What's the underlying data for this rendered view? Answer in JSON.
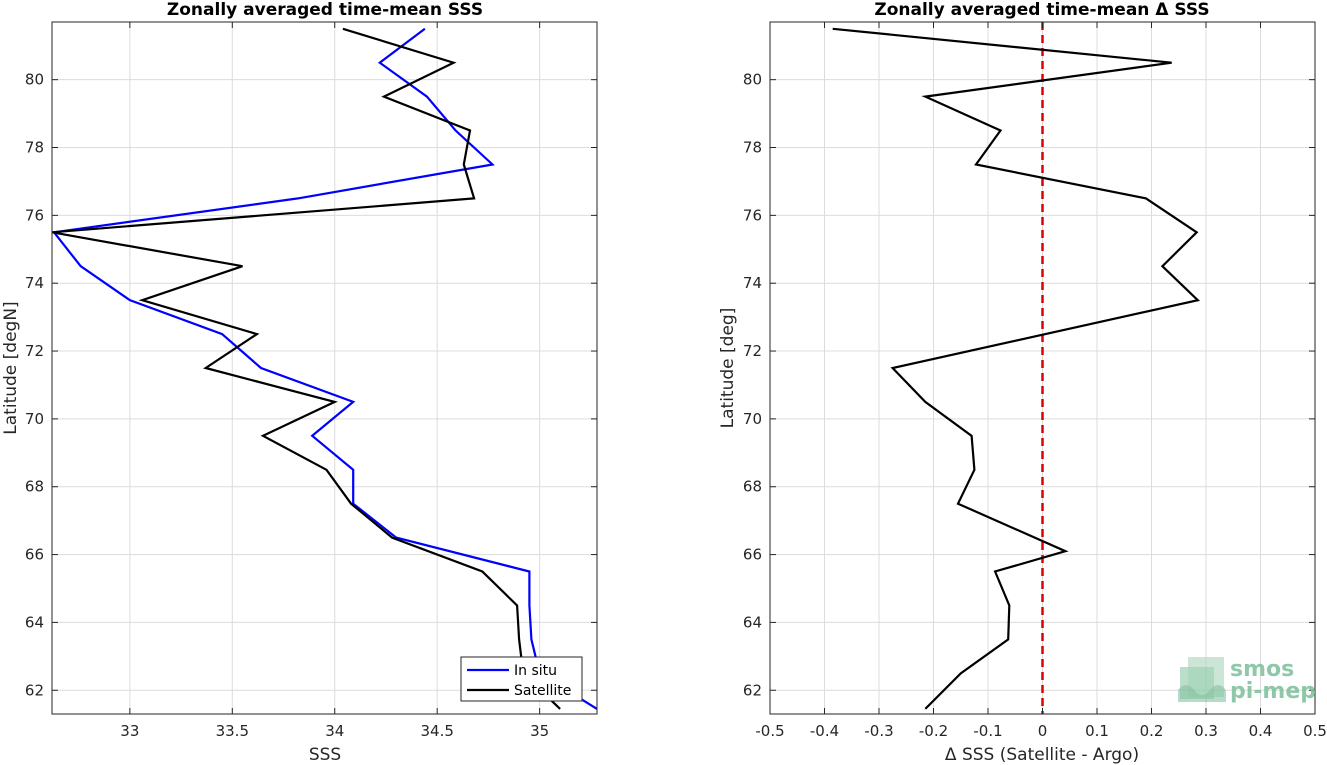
{
  "chart_data": [
    {
      "type": "line",
      "title": "Zonally averaged time-mean SSS",
      "xlabel": "SSS",
      "ylabel": "Latitude [degN]",
      "xlim": [
        32.62,
        35.28
      ],
      "ylim": [
        61.3,
        81.7
      ],
      "grid": true,
      "xticks": [
        33,
        33.5,
        34,
        34.5,
        35
      ],
      "xtick_labels": [
        "33",
        "33.5",
        "34",
        "34.5",
        "35"
      ],
      "yticks": [
        62,
        64,
        66,
        68,
        70,
        72,
        74,
        76,
        78,
        80
      ],
      "ytick_labels": [
        "62",
        "64",
        "66",
        "68",
        "70",
        "72",
        "74",
        "76",
        "78",
        "80"
      ],
      "legend_position": "bottom-right",
      "series": [
        {
          "name": "In situ",
          "color": "#0000ff",
          "points": [
            [
              35.28,
              61.45
            ],
            [
              35.0,
              62.5
            ],
            [
              34.96,
              63.5
            ],
            [
              34.95,
              64.5
            ],
            [
              34.95,
              65.5
            ],
            [
              34.3,
              66.5
            ],
            [
              34.09,
              67.5
            ],
            [
              34.09,
              68.5
            ],
            [
              33.89,
              69.5
            ],
            [
              34.09,
              70.5
            ],
            [
              33.64,
              71.5
            ],
            [
              33.45,
              72.5
            ],
            [
              33.0,
              73.5
            ],
            [
              32.76,
              74.5
            ],
            [
              32.63,
              75.5
            ],
            [
              33.82,
              76.5
            ],
            [
              34.77,
              77.5
            ],
            [
              34.59,
              78.5
            ],
            [
              34.45,
              79.5
            ],
            [
              34.22,
              80.5
            ],
            [
              34.44,
              81.5
            ]
          ]
        },
        {
          "name": "Satellite",
          "color": "#000000",
          "points": [
            [
              35.1,
              61.45
            ],
            [
              34.92,
              62.5
            ],
            [
              34.9,
              63.5
            ],
            [
              34.89,
              64.5
            ],
            [
              34.72,
              65.5
            ],
            [
              34.28,
              66.5
            ],
            [
              34.08,
              67.5
            ],
            [
              33.96,
              68.5
            ],
            [
              33.65,
              69.5
            ],
            [
              34.0,
              70.5
            ],
            [
              33.37,
              71.5
            ],
            [
              33.62,
              72.5
            ],
            [
              33.06,
              73.5
            ],
            [
              33.55,
              74.5
            ],
            [
              32.62,
              75.5
            ],
            [
              34.68,
              76.5
            ],
            [
              34.63,
              77.5
            ],
            [
              34.66,
              78.5
            ],
            [
              34.24,
              79.5
            ],
            [
              34.58,
              80.5
            ],
            [
              34.04,
              81.5
            ]
          ]
        }
      ]
    },
    {
      "type": "line",
      "title": "Zonally averaged time-mean Δ SSS",
      "xlabel": "Δ SSS (Satellite - Argo)",
      "ylabel": "Latitude [deg]",
      "xlim": [
        -0.5,
        0.5
      ],
      "ylim": [
        61.3,
        81.7
      ],
      "grid": true,
      "xticks": [
        -0.5,
        -0.4,
        -0.3,
        -0.2,
        -0.1,
        0,
        0.1,
        0.2,
        0.3,
        0.4,
        0.5
      ],
      "xtick_labels": [
        "-0.5",
        "-0.4",
        "-0.3",
        "-0.2",
        "-0.1",
        "0",
        "0.1",
        "0.2",
        "0.3",
        "0.4",
        "0.5"
      ],
      "yticks": [
        62,
        64,
        66,
        68,
        70,
        72,
        74,
        76,
        78,
        80
      ],
      "ytick_labels": [
        "62",
        "64",
        "66",
        "68",
        "70",
        "72",
        "74",
        "76",
        "78",
        "80"
      ],
      "reference_line": {
        "x": 0,
        "color": "#e00000",
        "style": "dashed"
      },
      "series": [
        {
          "color": "#000000",
          "points": [
            [
              -0.215,
              61.45
            ],
            [
              -0.15,
              62.5
            ],
            [
              -0.063,
              63.5
            ],
            [
              -0.061,
              64.5
            ],
            [
              -0.087,
              65.5
            ],
            [
              0.042,
              66.1
            ],
            [
              -0.155,
              67.5
            ],
            [
              -0.125,
              68.5
            ],
            [
              -0.13,
              69.5
            ],
            [
              -0.215,
              70.5
            ],
            [
              -0.275,
              71.5
            ],
            [
              0.285,
              73.5
            ],
            [
              0.22,
              74.5
            ],
            [
              0.283,
              75.5
            ],
            [
              0.19,
              76.5
            ],
            [
              -0.122,
              77.5
            ],
            [
              -0.077,
              78.5
            ],
            [
              -0.215,
              79.5
            ],
            [
              0.237,
              80.5
            ],
            [
              -0.385,
              81.5
            ]
          ]
        }
      ]
    }
  ],
  "logo": {
    "line1": "smos",
    "line2": "pi-mep",
    "color": "#7bbf9a"
  }
}
